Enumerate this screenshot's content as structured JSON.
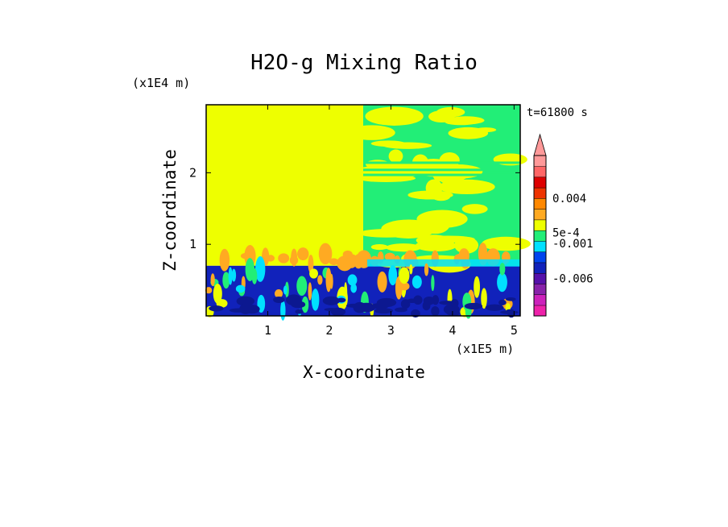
{
  "chart_data": {
    "type": "heatmap",
    "title": "H2O-g Mixing Ratio",
    "xlabel": "X-coordinate",
    "ylabel": "Z-coordinate",
    "x_scale_label": "(x1E5 m)",
    "y_scale_label": "(x1E4 m)",
    "time_label": "t=61800 s",
    "xlim": [
      0,
      5.1
    ],
    "ylim": [
      0,
      2.95
    ],
    "x_ticks": [
      1,
      2,
      3,
      4,
      5
    ],
    "y_ticks": [
      1,
      2
    ],
    "grid": false,
    "legend": "right colorbar",
    "colorbar": {
      "colors": [
        "#ee22aa",
        "#cc22bb",
        "#8822aa",
        "#5511aa",
        "#1122bb",
        "#0044ee",
        "#00e0ff",
        "#22ee77",
        "#eeff00",
        "#ffaa22",
        "#ff8800",
        "#ee3300",
        "#dd0000",
        "#ff6666",
        "#ff9999"
      ],
      "labels": [
        "0.004",
        "5e-4",
        "-0.001",
        "-0.006"
      ],
      "label_rows": [
        11,
        7.8,
        6.8,
        3.5
      ],
      "extend_top": true
    },
    "regions": [
      {
        "x": [
          0,
          2.55
        ],
        "z": [
          0.7,
          2.95
        ],
        "color": "#eeff00"
      },
      {
        "x": [
          0,
          5.1
        ],
        "z": [
          0,
          0.7
        ],
        "color": "#1122bb"
      },
      {
        "x": [
          2.55,
          5.1
        ],
        "z": [
          0.7,
          2.95
        ],
        "color": "#22ee77"
      }
    ],
    "colors": {
      "fill_high": "#eeff00",
      "fill_mid": "#22ee77",
      "fill_low": "#1122bb",
      "fill_low_dark": "#0c1890",
      "accent_orange": "#ffaa22",
      "accent_cyan": "#00e0ff"
    }
  }
}
